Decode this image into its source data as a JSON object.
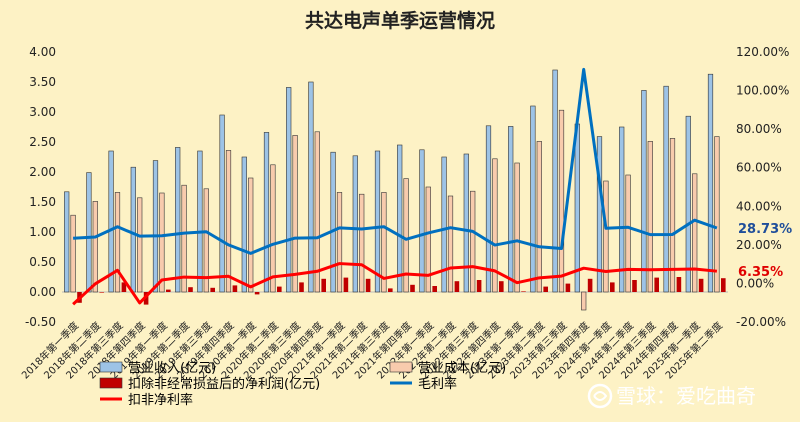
{
  "chart_data": {
    "type": "bar",
    "title": "共达电声单季运营情况",
    "categories": [
      "2018年第一季度",
      "2018年第二季度",
      "2018年第三季度",
      "2018年第四季度",
      "2019年第一季度",
      "2019年第二季度",
      "2019年第三季度",
      "2019年第四季度",
      "2020年第一季度",
      "2020年第二季度",
      "2020年第三季度",
      "2020年第四季度",
      "2021年第一季度",
      "2021年第二季度",
      "2021年第三季度",
      "2021年第四季度",
      "2022年第一季度",
      "2022年第二季度",
      "2022年第三季度",
      "2022年第四季度",
      "2023年第一季度",
      "2023年第二季度",
      "2023年第三季度",
      "2023年第四季度",
      "2024年第一季度",
      "2024年第二季度",
      "2024年第三季度",
      "2024年第四季度",
      "2025年第一季度",
      "2025年第二季度"
    ],
    "ylim_left": [
      -0.5,
      4.0
    ],
    "yticks_left": [
      "-0.50",
      "0.00",
      "0.50",
      "1.00",
      "1.50",
      "2.00",
      "2.50",
      "3.00",
      "3.50",
      "4.00"
    ],
    "ylim_right": [
      -20,
      120
    ],
    "yticks_right": [
      "-20.00%",
      "0.00%",
      "20.00%",
      "40.00%",
      "60.00%",
      "80.00%",
      "100.00%",
      "120.00%"
    ],
    "series": [
      {
        "name": "营业收入(亿元)",
        "axis": "left",
        "kind": "bar",
        "color": "#9dc3e6",
        "values": [
          1.67,
          1.99,
          2.35,
          2.08,
          2.19,
          2.41,
          2.35,
          2.95,
          2.25,
          2.66,
          3.41,
          3.5,
          2.33,
          2.27,
          2.35,
          2.45,
          2.37,
          2.25,
          2.3,
          2.77,
          2.76,
          3.1,
          3.7,
          2.8,
          2.59,
          2.75,
          3.36,
          3.43,
          2.93,
          3.63
        ]
      },
      {
        "name": "营业成本(亿元)",
        "axis": "left",
        "kind": "bar",
        "color": "#f8cbad",
        "values": [
          1.28,
          1.51,
          1.66,
          1.57,
          1.65,
          1.78,
          1.72,
          2.36,
          1.9,
          2.12,
          2.61,
          2.67,
          1.66,
          1.63,
          1.66,
          1.89,
          1.75,
          1.6,
          1.68,
          2.22,
          2.15,
          2.51,
          3.03,
          -0.3,
          1.85,
          1.95,
          2.51,
          2.56,
          1.97,
          2.59
        ]
      },
      {
        "name": "扣除非经常损益后的净利润(亿元)",
        "axis": "left",
        "kind": "bar",
        "color": "#c00000",
        "values": [
          -0.18,
          0.0,
          0.16,
          -0.21,
          0.04,
          0.08,
          0.07,
          0.11,
          -0.04,
          0.09,
          0.16,
          0.22,
          0.24,
          0.22,
          0.06,
          0.12,
          0.1,
          0.18,
          0.2,
          0.18,
          0.01,
          0.09,
          0.14,
          0.22,
          0.16,
          0.2,
          0.24,
          0.25,
          0.22,
          0.23
        ]
      },
      {
        "name": "毛利率",
        "axis": "right",
        "kind": "line",
        "color": "#0070c0",
        "values": [
          23.4,
          24.1,
          29.4,
          24.5,
          24.7,
          26.1,
          26.8,
          20.0,
          15.6,
          20.3,
          23.5,
          23.7,
          28.8,
          28.2,
          29.4,
          22.9,
          26.2,
          28.9,
          27.0,
          19.9,
          22.1,
          19.0,
          18.1,
          111.0,
          28.6,
          29.1,
          25.3,
          25.4,
          32.8,
          28.73
        ]
      },
      {
        "name": "扣非净利率",
        "axis": "right",
        "kind": "line",
        "color": "#ff0000",
        "values": [
          -10.8,
          -0.2,
          6.8,
          -10.1,
          1.8,
          3.3,
          3.0,
          3.7,
          -1.8,
          3.4,
          4.7,
          6.3,
          10.3,
          9.7,
          2.6,
          4.9,
          4.2,
          8.0,
          8.7,
          6.5,
          0.4,
          2.9,
          3.8,
          7.9,
          6.2,
          7.3,
          7.1,
          7.3,
          7.5,
          6.35
        ]
      }
    ],
    "annotations": [
      {
        "text": "28.73%",
        "series": "毛利率",
        "color": "#1f4e9a"
      },
      {
        "text": "6.35%",
        "series": "扣非净利率",
        "color": "#e00000"
      }
    ],
    "legend": [
      {
        "label": "营业收入(亿元)",
        "swatch": "bar",
        "color": "#9dc3e6"
      },
      {
        "label": "营业成本(亿元)",
        "swatch": "bar",
        "color": "#f8cbad"
      },
      {
        "label": "扣除非经常损益后的净利润(亿元)",
        "swatch": "bar",
        "color": "#c00000"
      },
      {
        "label": "毛利率",
        "swatch": "line",
        "color": "#0070c0"
      },
      {
        "label": "扣非净利率",
        "swatch": "line",
        "color": "#ff0000"
      }
    ],
    "legend_placement": "bottom",
    "grid": false
  },
  "watermark": {
    "icon": "snowball-logo",
    "text": "雪球：爱吃曲奇"
  }
}
